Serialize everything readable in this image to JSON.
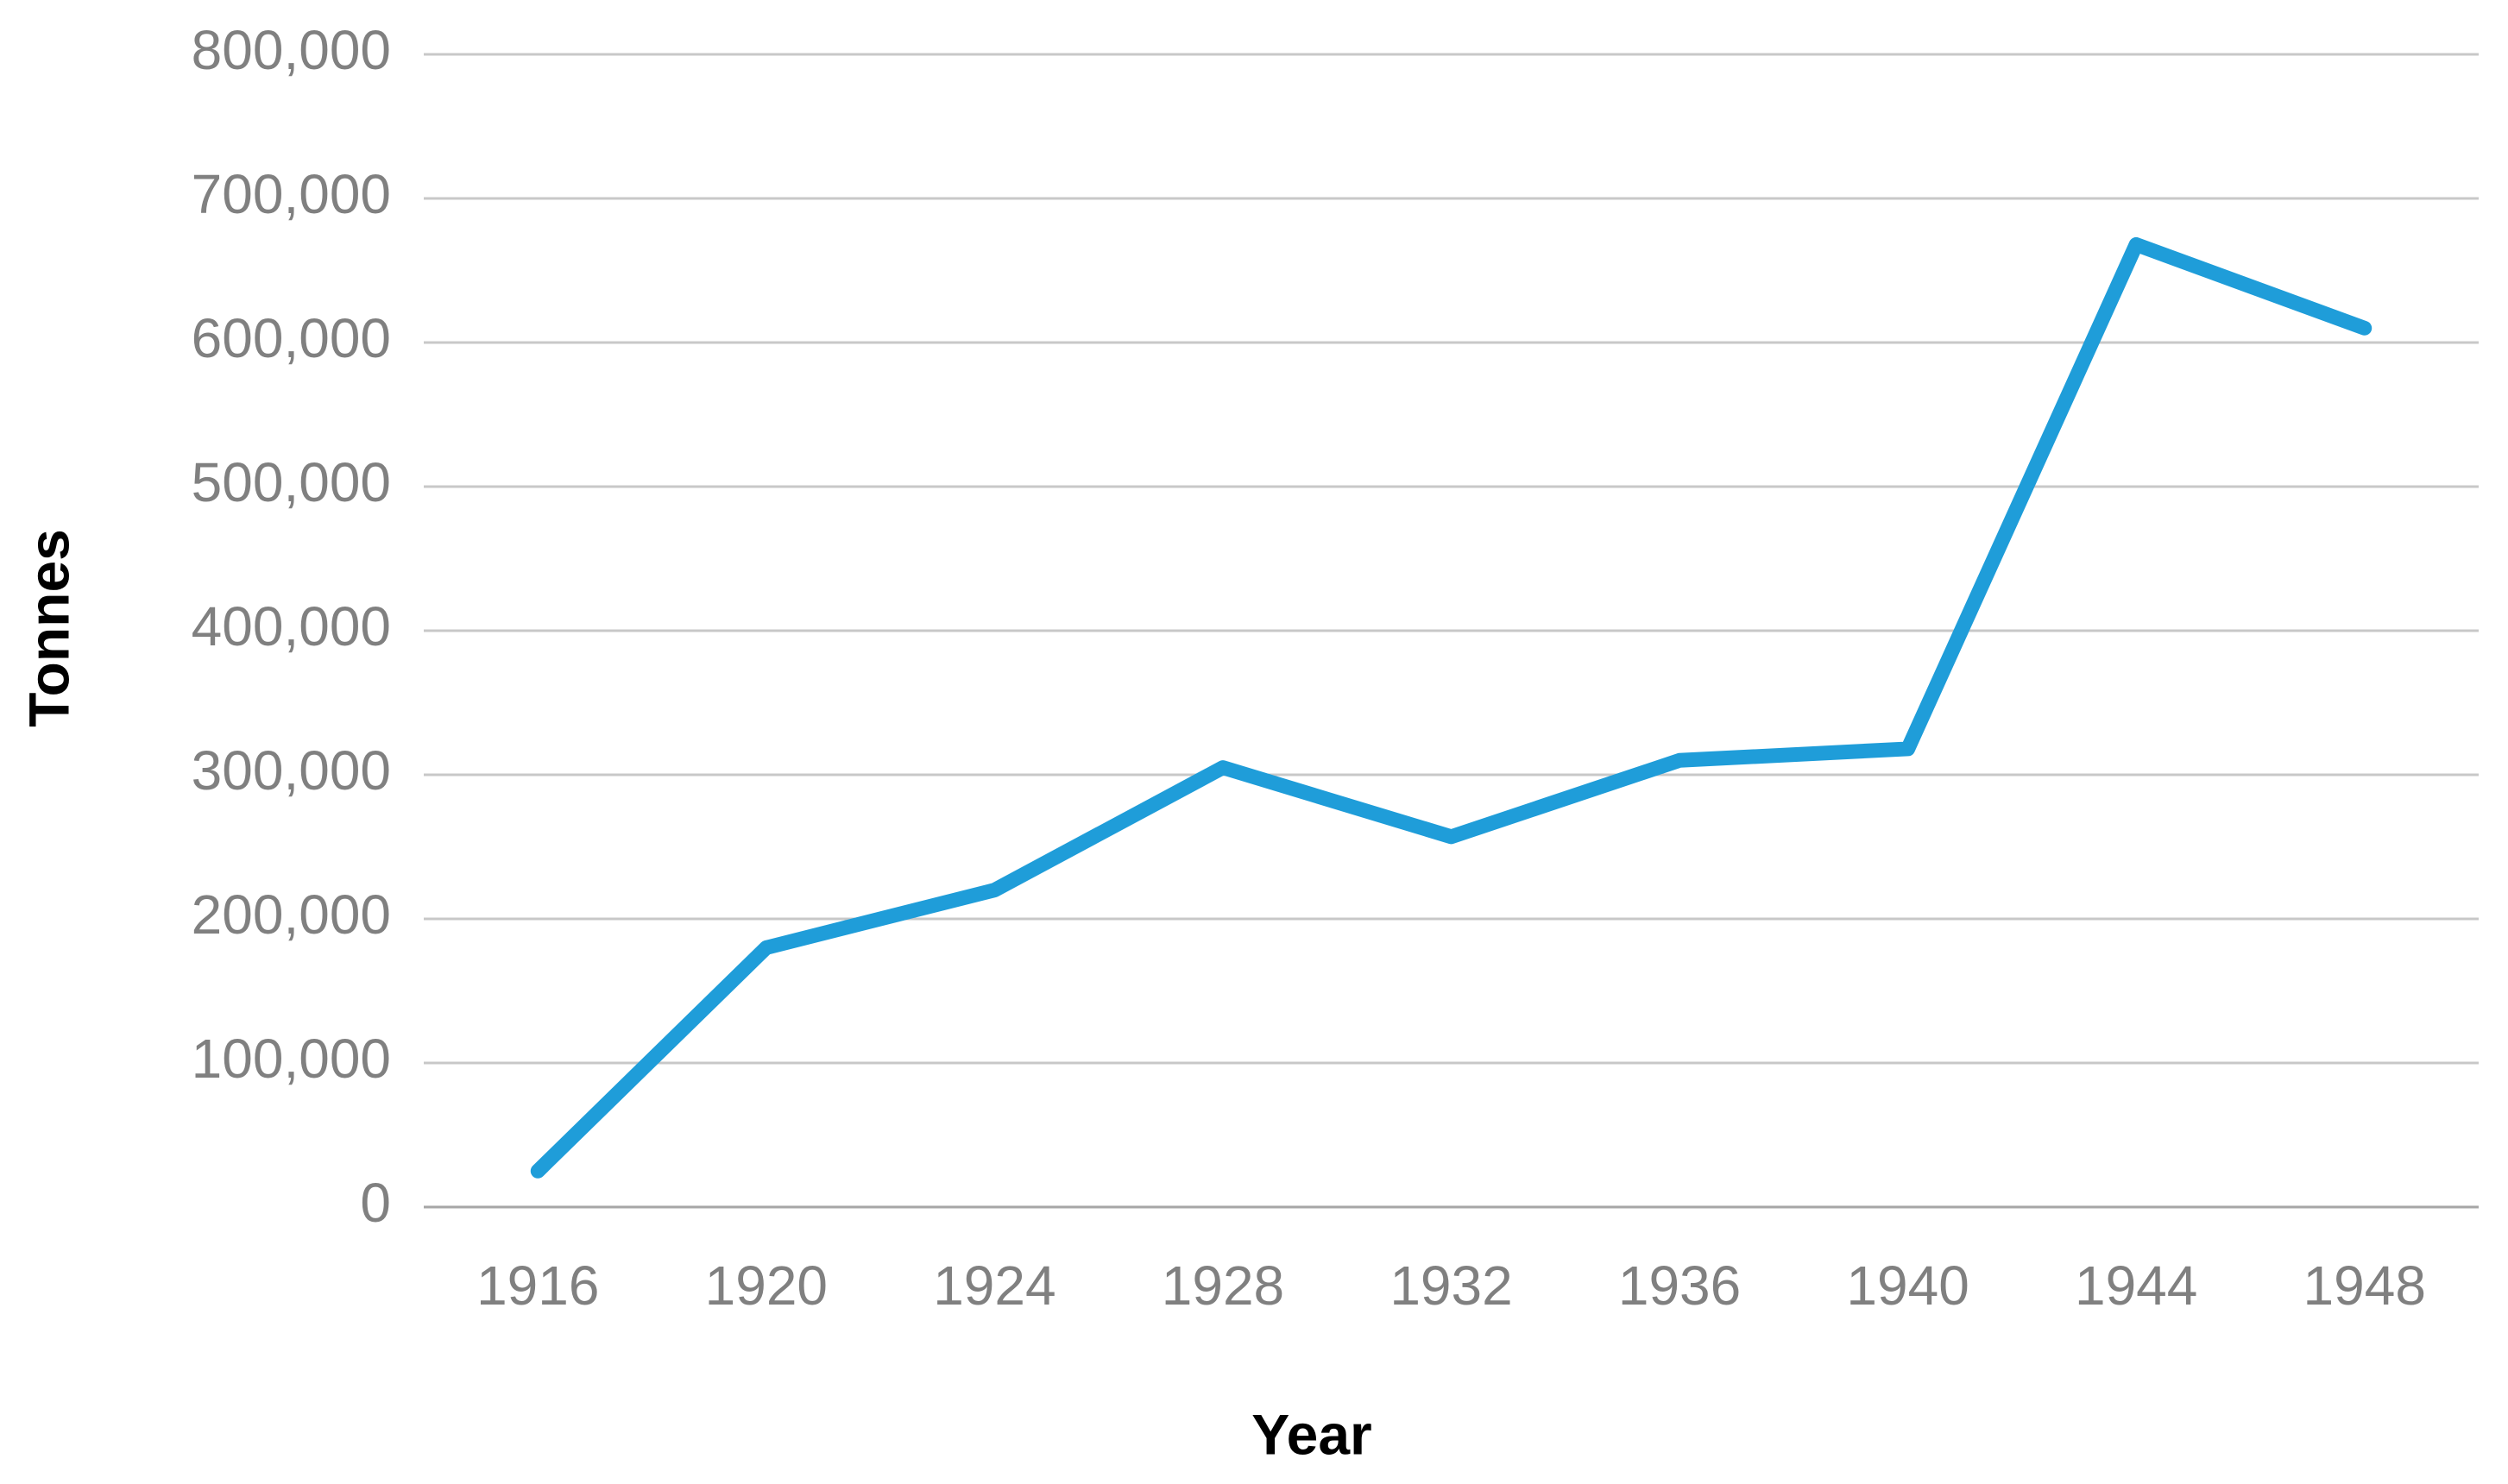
{
  "chart_data": {
    "type": "line",
    "x_label": "Year",
    "y_label": "Tonnes",
    "categories": [
      "1916",
      "1920",
      "1924",
      "1928",
      "1932",
      "1936",
      "1940",
      "1944",
      "1948"
    ],
    "series": [
      {
        "name": "Tonnes",
        "color": "#1f9dd9",
        "values": [
          25000,
          180000,
          220000,
          305000,
          257000,
          310000,
          318000,
          668000,
          610000
        ]
      }
    ],
    "ylim": [
      0,
      800000
    ],
    "yticks": [
      0,
      {
        "value": 100000,
        "label": "100,000"
      },
      {
        "value": 200000,
        "label": "200,000"
      },
      {
        "value": 300000,
        "label": "300,000"
      },
      {
        "value": 400000,
        "label": "400,000"
      },
      {
        "value": 500000,
        "label": "500,000"
      },
      {
        "value": 600000,
        "label": "600,000"
      },
      {
        "value": 700000,
        "label": "700,000"
      },
      {
        "value": 800000,
        "label": "800,000"
      }
    ],
    "grid": true
  }
}
